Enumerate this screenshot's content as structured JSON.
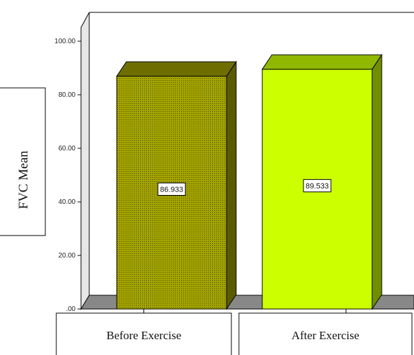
{
  "chart_data": {
    "type": "bar",
    "style": "3d",
    "categories": [
      "Before Exercise",
      "After Exercise"
    ],
    "values": [
      86.933,
      89.533
    ],
    "data_labels": [
      "86.933",
      "89.533"
    ],
    "ylabel": "FVC Mean",
    "xlabel": "",
    "ylim": [
      0,
      100
    ],
    "yticks": [
      0,
      20,
      40,
      60,
      80,
      100
    ],
    "ytick_labels": [
      ".00",
      "20.00",
      "40.00",
      "60.00",
      "80.00",
      "100.00"
    ],
    "grid": false,
    "legend": "none",
    "colors": {
      "bar_fill": [
        "#a3a300",
        "#ccff00"
      ],
      "bar_top": [
        "#6e6e00",
        "#90b800"
      ],
      "bar_side": [
        "#5a5a00",
        "#6f8f00"
      ],
      "wall": "#e6e6e6",
      "floor": "#888888"
    }
  }
}
